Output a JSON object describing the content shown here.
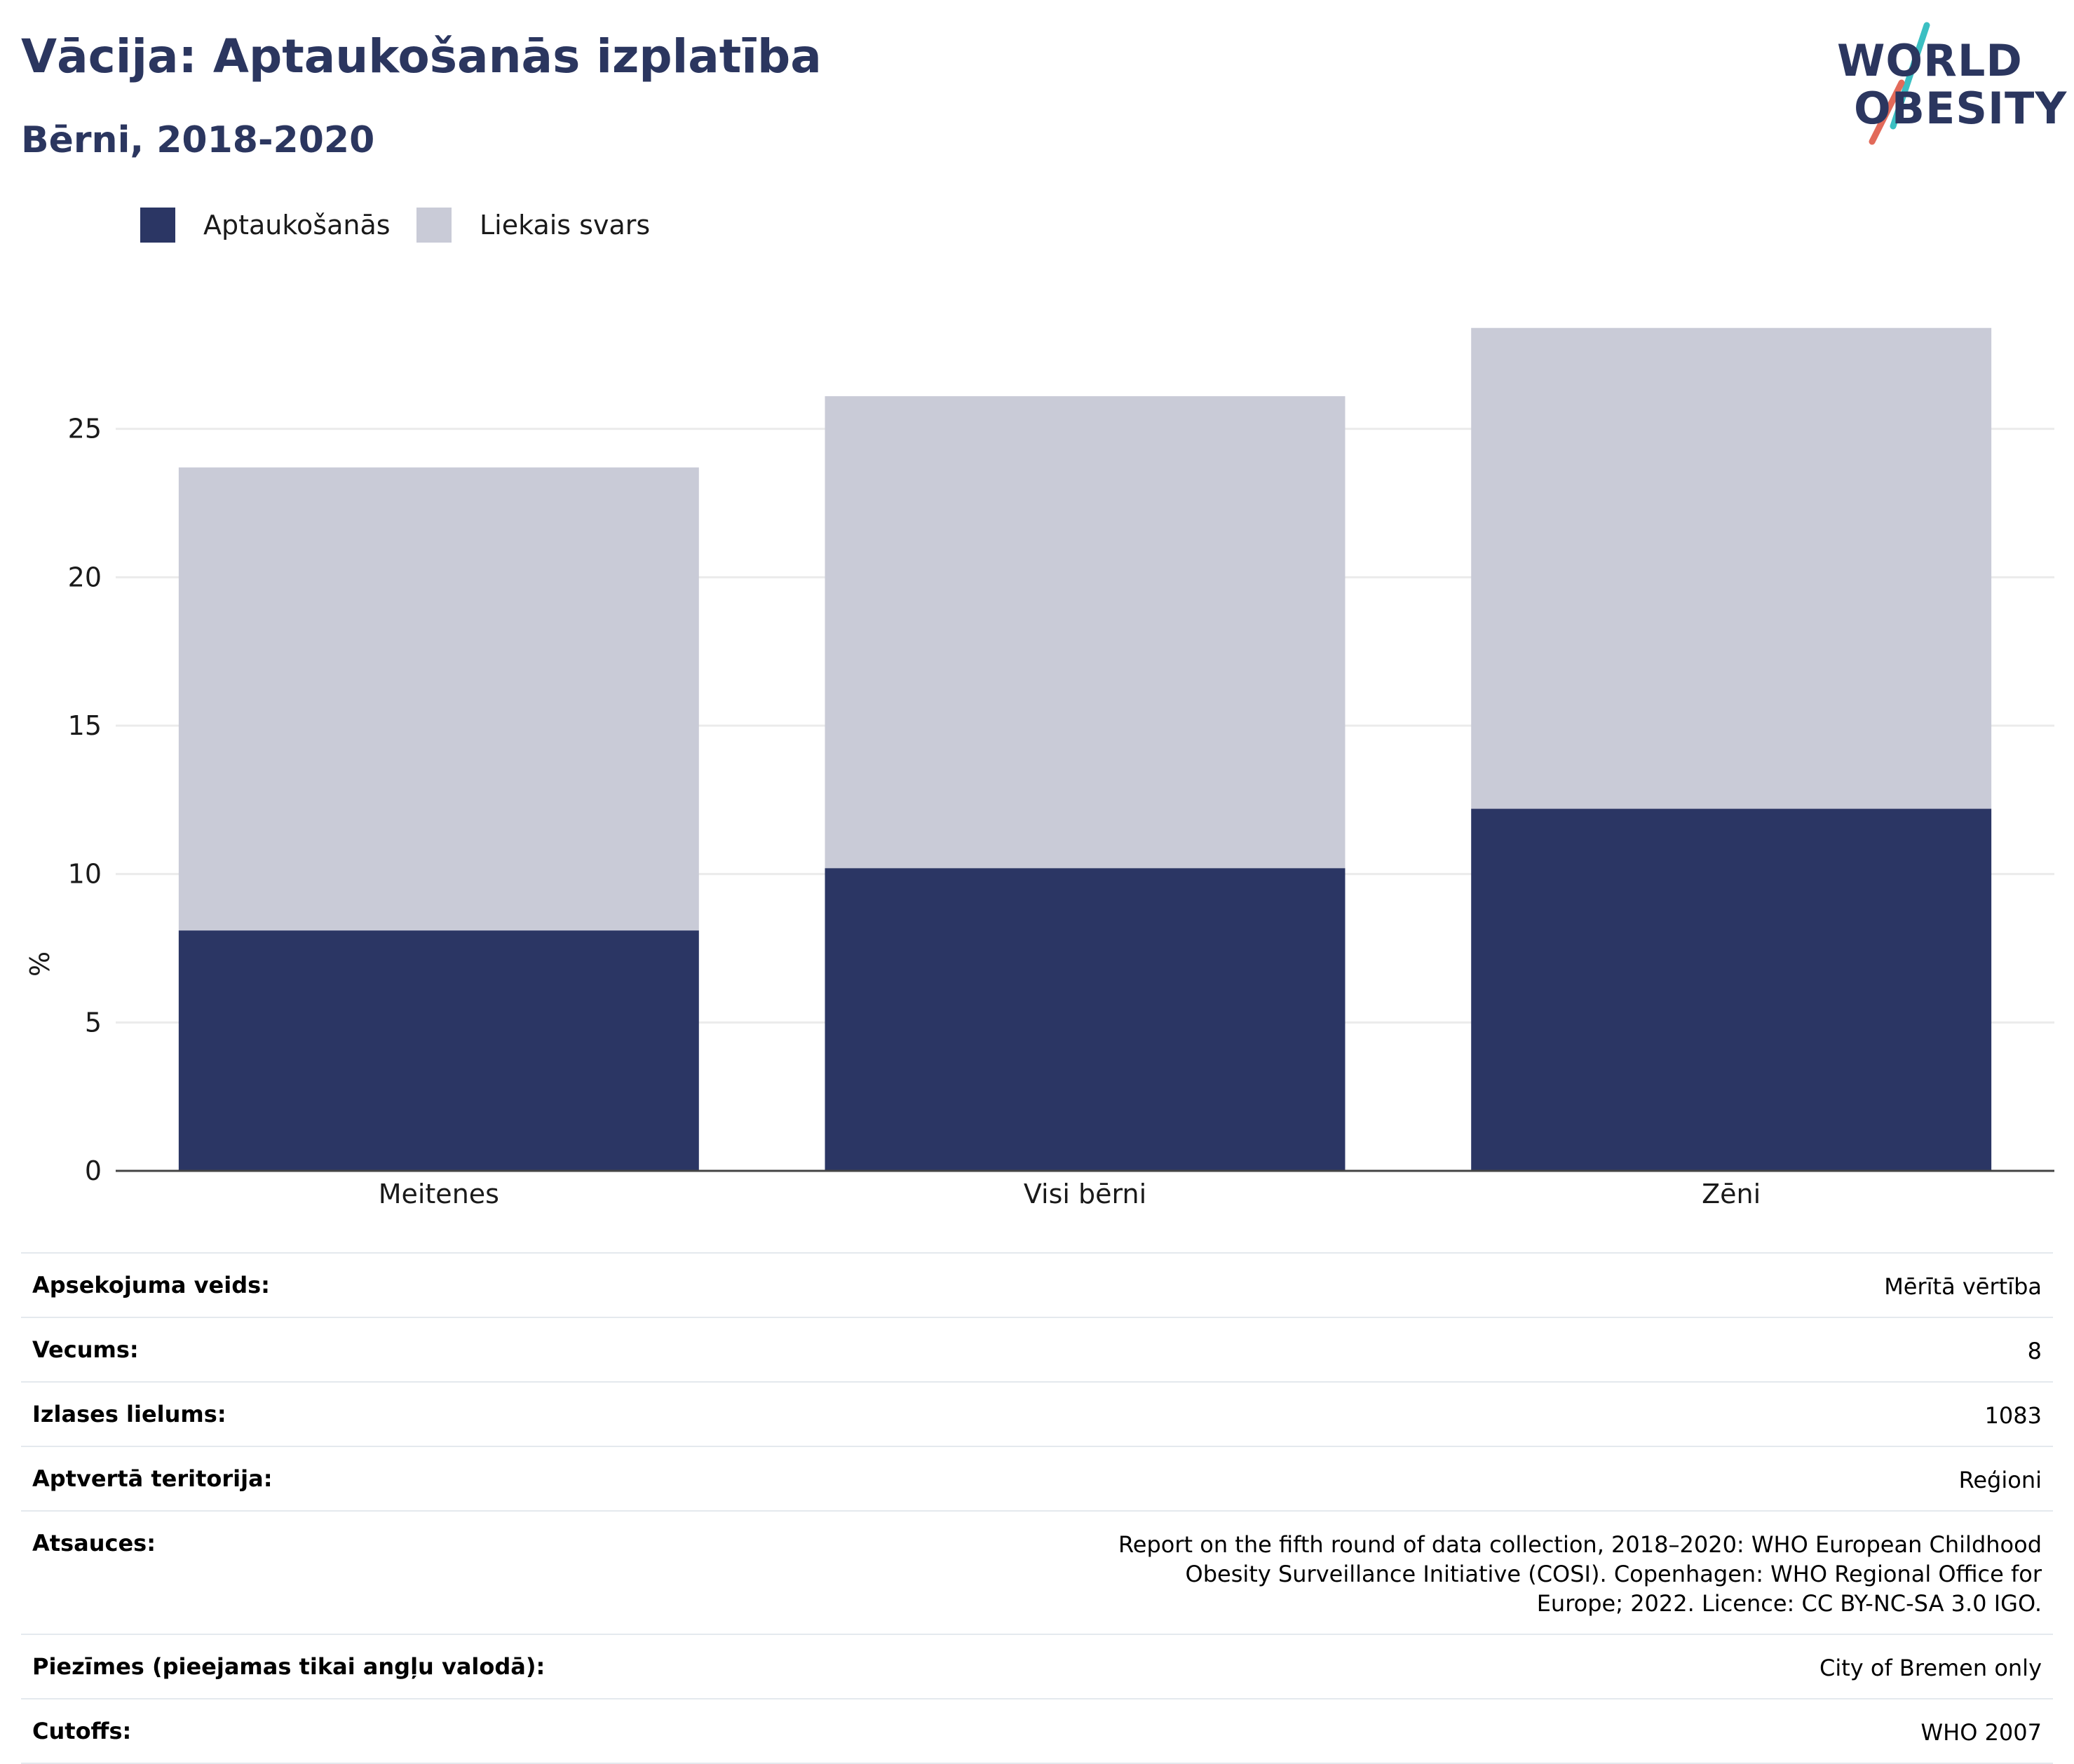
{
  "header": {
    "title": "Vācija: Aptaukošanās izplatība",
    "subtitle": "Bērni, 2018-2020"
  },
  "logo": {
    "line1": "WORLD",
    "line2": "OBESITY",
    "slash_colors": [
      "#3bbfc2",
      "#e26a5a"
    ]
  },
  "colors": {
    "obesity": "#2b3664",
    "overweight": "#c9cbd7",
    "grid": "#ebebeb",
    "axis": "#444444"
  },
  "legend": {
    "items": [
      {
        "label": "Aptaukošanās",
        "color": "#2b3664"
      },
      {
        "label": "Liekais svars",
        "color": "#c9cbd7"
      }
    ],
    "placement": "top-left"
  },
  "chart_data": {
    "type": "bar",
    "stacked": true,
    "categories": [
      "Meitenes",
      "Visi bērni",
      "Zēni"
    ],
    "series": [
      {
        "name": "Aptaukošanās",
        "values": [
          8.1,
          10.2,
          12.2
        ]
      },
      {
        "name": "Liekais svars",
        "values": [
          15.6,
          15.9,
          16.2
        ]
      }
    ],
    "ylabel": "%",
    "xlabel": "",
    "ylim": [
      0,
      30
    ],
    "yticks": [
      0,
      5,
      10,
      15,
      20,
      25
    ],
    "grid": true
  },
  "meta": {
    "rows": [
      {
        "key": "Apsekojuma veids:",
        "value": "Mērītā vērtība"
      },
      {
        "key": "Vecums:",
        "value": "8"
      },
      {
        "key": "Izlases lielums:",
        "value": "1083"
      },
      {
        "key": "Aptvertā teritorija:",
        "value": "Reģioni"
      },
      {
        "key": "Atsauces:",
        "value": "Report on the fifth round of data collection, 2018–2020: WHO European Childhood Obesity Surveillance Initiative (COSI). Copenhagen: WHO Regional Office for Europe; 2022. Licence: CC BY-NC-SA 3.0 IGO."
      },
      {
        "key": "Piezīmes (pieejamas tikai angļu valodā):",
        "value": "City of Bremen only"
      },
      {
        "key": "Cutoffs:",
        "value": "WHO 2007"
      }
    ]
  }
}
